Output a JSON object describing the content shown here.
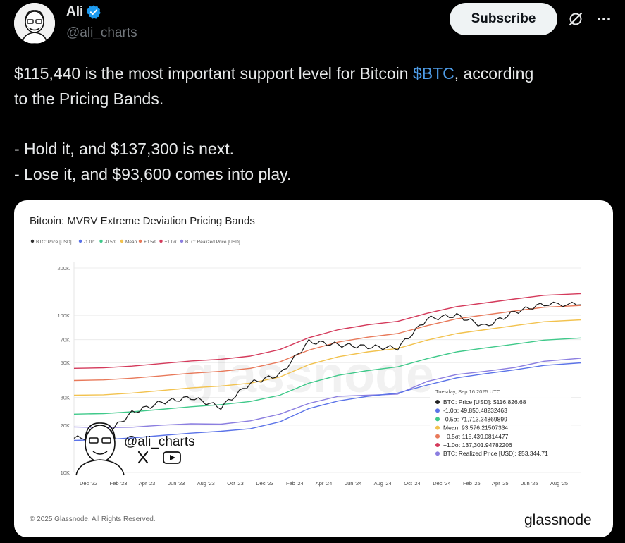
{
  "author": {
    "name": "Ali",
    "handle": "@ali_charts"
  },
  "actions": {
    "subscribe_label": "Subscribe"
  },
  "tweet": {
    "line1_pre": "$115,440 is the most important support level for Bitcoin ",
    "cashtag": "$BTC",
    "line1_post": ", according",
    "line2": "to the Pricing Bands.",
    "line3": "- Hold it, and $137,300 is next.",
    "line4": "- Lose it, and $93,600 comes into play."
  },
  "colors": {
    "background": "#000000",
    "cashtag": "#4f9de8",
    "verified": "#1d9bf0",
    "band_minus_1": "#5b73e8",
    "band_minus_05": "#3fc98a",
    "band_mean": "#f2c24e",
    "band_plus_05": "#e8795a",
    "band_plus_1": "#d43a5b",
    "realized": "#8b7ee0"
  },
  "chart_data": {
    "type": "line",
    "title": "Bitcoin: MVRV Extreme Deviation Pricing Bands",
    "legend": [
      "BTC: Price [USD]",
      "-1.0σ",
      "-0.5σ",
      "Mean",
      "+0.5σ",
      "+1.0σ",
      "BTC: Realized Price [USD]"
    ],
    "log_scale": true,
    "y_ticks": [
      "200K",
      "100K",
      "70K",
      "50K",
      "30K",
      "20K",
      "10K"
    ],
    "x_ticks": [
      "Dec '22",
      "Feb '23",
      "Apr '23",
      "Jun '23",
      "Aug '23",
      "Oct '23",
      "Dec '23",
      "Feb '24",
      "Apr '24",
      "Jun '24",
      "Aug '24",
      "Oct '24",
      "Dec '24",
      "Feb '25",
      "Apr '25",
      "Jun '25",
      "Aug '25"
    ],
    "x": [
      "2022-11",
      "2023-01",
      "2023-03",
      "2023-05",
      "2023-07",
      "2023-09",
      "2023-11",
      "2024-01",
      "2024-03",
      "2024-05",
      "2024-07",
      "2024-09",
      "2024-11",
      "2025-01",
      "2025-03",
      "2025-05",
      "2025-07",
      "2025-09"
    ],
    "series": [
      {
        "name": "BTC: Price [USD]",
        "values": [
          16500,
          17000,
          24000,
          28000,
          30000,
          26000,
          37000,
          42000,
          68000,
          65000,
          63000,
          62000,
          95000,
          100000,
          85000,
          105000,
          118000,
          116800
        ]
      },
      {
        "name": "-1.0σ",
        "values": [
          16000,
          16200,
          16600,
          17200,
          17800,
          18300,
          19000,
          21000,
          25500,
          28500,
          30500,
          32000,
          36000,
          40000,
          42500,
          45000,
          48000,
          49850
        ]
      },
      {
        "name": "-0.5σ",
        "values": [
          23500,
          23700,
          24300,
          25200,
          26200,
          27000,
          28300,
          31000,
          37000,
          41500,
          44500,
          47000,
          53000,
          58500,
          62000,
          65500,
          69500,
          71713
        ]
      },
      {
        "name": "Mean",
        "values": [
          31000,
          31200,
          32000,
          33200,
          34500,
          35500,
          37000,
          40500,
          48500,
          54500,
          58500,
          61500,
          69500,
          76500,
          81000,
          86000,
          91000,
          93576
        ]
      },
      {
        "name": "+0.5σ",
        "values": [
          38500,
          38800,
          39800,
          41200,
          42800,
          44000,
          46000,
          50500,
          60000,
          67500,
          72500,
          76500,
          86000,
          95000,
          100500,
          106500,
          112500,
          115439
        ]
      },
      {
        "name": "+1.0σ",
        "values": [
          46000,
          46300,
          47500,
          49300,
          51200,
          52500,
          55000,
          60500,
          72000,
          81000,
          87000,
          91500,
          103000,
          113500,
          120000,
          127000,
          134000,
          137301
        ]
      },
      {
        "name": "BTC: Realized Price [USD]",
        "values": [
          19500,
          19300,
          19400,
          20000,
          20400,
          20300,
          21300,
          23500,
          27500,
          30500,
          31000,
          31500,
          38000,
          42000,
          44000,
          46500,
          51000,
          53344
        ]
      }
    ],
    "tooltip": {
      "date": "Tuesday, Sep 16 2025 UTC",
      "rows": [
        {
          "label": "BTC: Price [USD]: $116,826.68",
          "color": "#222222"
        },
        {
          "label": "-1.0σ: 49,850.48232463",
          "color": "#5b73e8"
        },
        {
          "label": "-0.5σ: 71,713.34869899",
          "color": "#3fc98a"
        },
        {
          "label": "Mean: 93,576.21507334",
          "color": "#f2c24e"
        },
        {
          "label": "+0.5σ: 115,439.0814477",
          "color": "#e8795a"
        },
        {
          "label": "+1.0σ: 137,301.94782206",
          "color": "#d43a5b"
        },
        {
          "label": "BTC: Realized Price [USD]: $53,344.71",
          "color": "#8b7ee0"
        }
      ]
    },
    "watermark": "glassnode",
    "overlay_handle": "@ali_charts",
    "copyright": "© 2025 Glassnode. All Rights Reserved.",
    "brand": "glassnode"
  }
}
